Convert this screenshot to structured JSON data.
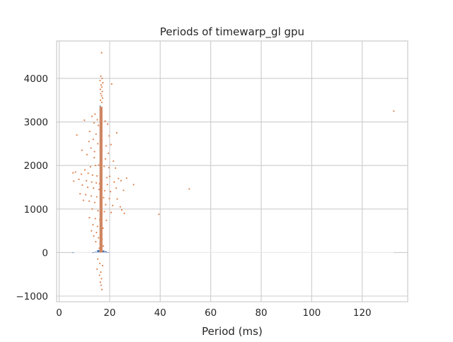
{
  "chart_data": {
    "type": "scatter",
    "title": "Periods of timewarp_gl gpu",
    "xlabel": "Period (ms)",
    "ylabel": "",
    "xlim": [
      -1,
      138
    ],
    "ylim": [
      -1130,
      4860
    ],
    "xticks": [
      0,
      20,
      40,
      60,
      80,
      100,
      120
    ],
    "yticks": [
      -1000,
      0,
      1000,
      2000,
      3000,
      4000
    ],
    "grid": true,
    "histogram": {
      "description": "histogram of periods (bin width ~1 ms)",
      "bins": [
        {
          "x0": 5.0,
          "x1": 6.0,
          "count": 2
        },
        {
          "x0": 13.0,
          "x1": 14.0,
          "count": 5
        },
        {
          "x0": 14.0,
          "x1": 15.0,
          "count": 20
        },
        {
          "x0": 15.0,
          "x1": 16.0,
          "count": 60
        },
        {
          "x0": 16.0,
          "x1": 16.5,
          "count": 3380
        },
        {
          "x0": 16.5,
          "x1": 17.0,
          "count": 3340
        },
        {
          "x0": 17.0,
          "x1": 18.0,
          "count": 50
        },
        {
          "x0": 18.0,
          "x1": 19.0,
          "count": 30
        },
        {
          "x0": 19.0,
          "x1": 20.0,
          "count": 12
        }
      ],
      "color": "#4c72b0"
    },
    "scatter_series": {
      "color": "#dd8452",
      "points": [
        [
          16.8,
          4590
        ],
        [
          16.5,
          4050
        ],
        [
          17.0,
          4000
        ],
        [
          16.2,
          3950
        ],
        [
          17.3,
          3900
        ],
        [
          16.6,
          3850
        ],
        [
          20.8,
          3870
        ],
        [
          16.9,
          3800
        ],
        [
          16.3,
          3750
        ],
        [
          17.1,
          3700
        ],
        [
          16.5,
          3650
        ],
        [
          16.8,
          3600
        ],
        [
          17.2,
          3550
        ],
        [
          16.4,
          3500
        ],
        [
          16.9,
          3450
        ],
        [
          13.0,
          3130
        ],
        [
          14.2,
          3180
        ],
        [
          15.1,
          3050
        ],
        [
          10.0,
          3040
        ],
        [
          13.8,
          2980
        ],
        [
          15.5,
          2920
        ],
        [
          18.2,
          3020
        ],
        [
          19.2,
          2950
        ],
        [
          22.8,
          2750
        ],
        [
          7.0,
          2700
        ],
        [
          12.1,
          2780
        ],
        [
          14.6,
          2720
        ],
        [
          19.8,
          2680
        ],
        [
          13.5,
          2600
        ],
        [
          11.8,
          2550
        ],
        [
          15.3,
          2500
        ],
        [
          18.6,
          2450
        ],
        [
          20.5,
          2480
        ],
        [
          9.0,
          2350
        ],
        [
          12.6,
          2400
        ],
        [
          14.0,
          2320
        ],
        [
          19.5,
          2280
        ],
        [
          11.0,
          2250
        ],
        [
          13.9,
          2180
        ],
        [
          18.3,
          2150
        ],
        [
          21.5,
          2100
        ],
        [
          16.3,
          2060
        ],
        [
          15.7,
          2010
        ],
        [
          14.4,
          2000
        ],
        [
          12.4,
          1970
        ],
        [
          10.2,
          1900
        ],
        [
          17.8,
          1980
        ],
        [
          19.7,
          1950
        ],
        [
          22.3,
          1940
        ],
        [
          6.5,
          1850
        ],
        [
          5.5,
          1830
        ],
        [
          8.8,
          1800
        ],
        [
          11.5,
          1820
        ],
        [
          13.2,
          1780
        ],
        [
          15.0,
          1760
        ],
        [
          18.9,
          1720
        ],
        [
          20.0,
          1750
        ],
        [
          23.5,
          1700
        ],
        [
          26.7,
          1710
        ],
        [
          7.8,
          1680
        ],
        [
          10.8,
          1650
        ],
        [
          12.9,
          1620
        ],
        [
          14.7,
          1600
        ],
        [
          16.0,
          1580
        ],
        [
          19.1,
          1560
        ],
        [
          21.8,
          1620
        ],
        [
          24.5,
          1650
        ],
        [
          29.5,
          1560
        ],
        [
          5.8,
          1640
        ],
        [
          9.2,
          1550
        ],
        [
          11.3,
          1500
        ],
        [
          13.6,
          1480
        ],
        [
          15.8,
          1450
        ],
        [
          18.0,
          1420
        ],
        [
          20.3,
          1400
        ],
        [
          22.6,
          1480
        ],
        [
          25.5,
          1430
        ],
        [
          51.5,
          1460
        ],
        [
          8.3,
          1350
        ],
        [
          10.5,
          1330
        ],
        [
          12.7,
          1300
        ],
        [
          14.9,
          1280
        ],
        [
          17.6,
          1260
        ],
        [
          19.9,
          1240
        ],
        [
          23.0,
          1230
        ],
        [
          9.6,
          1200
        ],
        [
          11.9,
          1180
        ],
        [
          14.1,
          1150
        ],
        [
          16.6,
          1120
        ],
        [
          18.4,
          1100
        ],
        [
          21.2,
          1080
        ],
        [
          24.2,
          1050
        ],
        [
          13.1,
          1000
        ],
        [
          15.4,
          960
        ],
        [
          17.9,
          940
        ],
        [
          20.6,
          920
        ],
        [
          24.8,
          980
        ],
        [
          25.8,
          900
        ],
        [
          39.5,
          880
        ],
        [
          12.0,
          800
        ],
        [
          14.3,
          780
        ],
        [
          16.1,
          760
        ],
        [
          18.7,
          740
        ],
        [
          13.4,
          640
        ],
        [
          15.2,
          600
        ],
        [
          17.4,
          560
        ],
        [
          12.8,
          500
        ],
        [
          14.8,
          460
        ],
        [
          16.4,
          420
        ],
        [
          13.7,
          380
        ],
        [
          15.6,
          340
        ],
        [
          17.0,
          300
        ],
        [
          14.5,
          250
        ],
        [
          16.2,
          200
        ],
        [
          17.5,
          150
        ],
        [
          15.9,
          100
        ],
        [
          16.7,
          50
        ],
        [
          15.3,
          -150
        ],
        [
          16.1,
          -250
        ],
        [
          17.2,
          -300
        ],
        [
          15.0,
          -380
        ],
        [
          16.5,
          -450
        ],
        [
          16.0,
          -520
        ],
        [
          16.8,
          -600
        ],
        [
          16.3,
          -680
        ],
        [
          16.6,
          -750
        ],
        [
          16.9,
          -850
        ],
        [
          132.5,
          3250
        ]
      ]
    },
    "dense_band": {
      "x0": 16.0,
      "x1": 17.2,
      "y0": 0,
      "y1": 3350,
      "color": "#dd8452"
    }
  }
}
